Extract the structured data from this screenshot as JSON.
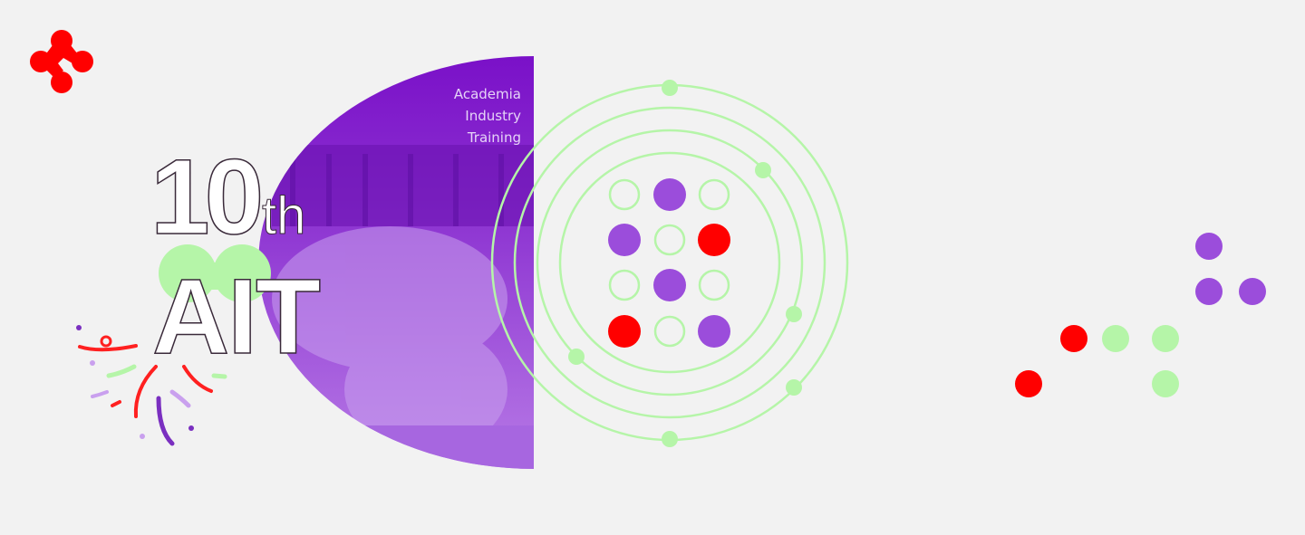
{
  "logo": {
    "name": "logo-icon",
    "color": "#ff0000"
  },
  "photo": {
    "tagline": [
      "Academia",
      "Industry",
      "Training"
    ],
    "tint": "#8a2be2"
  },
  "headline": {
    "number": "10",
    "suffix": "th",
    "acronym": "AIT"
  },
  "colors": {
    "red": "#ff0000",
    "purple": "#9b4ddb",
    "green": "#b5f5a8",
    "background": "#f2f2f2"
  },
  "dot_grid": [
    [
      "outline",
      "purple",
      "outline"
    ],
    [
      "purple",
      "outline",
      "red"
    ],
    [
      "outline",
      "purple",
      "outline"
    ],
    [
      "red",
      "outline",
      "purple"
    ]
  ]
}
